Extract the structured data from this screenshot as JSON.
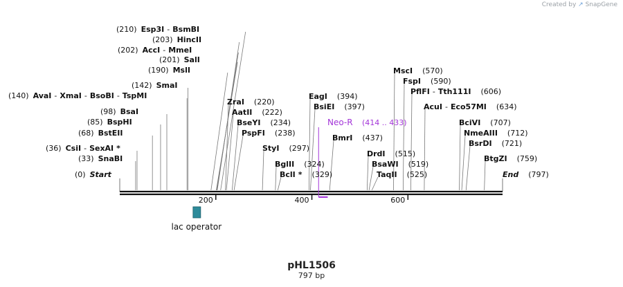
{
  "watermark": {
    "prefix": "Created by",
    "logo_text": "SnapGene"
  },
  "plasmid": {
    "name": "pHL1506",
    "length_label": "797 bp",
    "length": 797
  },
  "axis": {
    "ticks": [
      {
        "pos": 200,
        "label": "200"
      },
      {
        "pos": 400,
        "label": "400"
      },
      {
        "pos": 600,
        "label": "600"
      }
    ]
  },
  "features": [
    {
      "name": "lac operator",
      "start": 154,
      "end": 170,
      "color": "#2e8b9a",
      "kind": "box"
    },
    {
      "name": "Neo-R",
      "range_label": "(414 .. 433)",
      "start": 414,
      "end": 433,
      "color": "#a335d8",
      "kind": "primer"
    }
  ],
  "enzymes": [
    {
      "names": [
        "Start"
      ],
      "pos_label": "(0)",
      "pos": 0,
      "italic": true,
      "star": false
    },
    {
      "names": [
        "SnaBI"
      ],
      "pos_label": "(33)",
      "pos": 33
    },
    {
      "names": [
        "CsiI",
        "SexAI"
      ],
      "pos_label": "(36)",
      "pos": 36,
      "star": true
    },
    {
      "names": [
        "BstEII"
      ],
      "pos_label": "(68)",
      "pos": 68
    },
    {
      "names": [
        "BspHI"
      ],
      "pos_label": "(85)",
      "pos": 85
    },
    {
      "names": [
        "BsaI"
      ],
      "pos_label": "(98)",
      "pos": 98
    },
    {
      "names": [
        "AvaI",
        "XmaI",
        "BsoBI",
        "TspMI"
      ],
      "pos_label": "(140)",
      "pos": 140
    },
    {
      "names": [
        "SmaI"
      ],
      "pos_label": "(142)",
      "pos": 142
    },
    {
      "names": [
        "MslI"
      ],
      "pos_label": "(190)",
      "pos": 190
    },
    {
      "names": [
        "SalI"
      ],
      "pos_label": "(201)",
      "pos": 201
    },
    {
      "names": [
        "AccI",
        "MmeI"
      ],
      "pos_label": "(202)",
      "pos": 202
    },
    {
      "names": [
        "HincII"
      ],
      "pos_label": "(203)",
      "pos": 203
    },
    {
      "names": [
        "Esp3I",
        "BsmBI"
      ],
      "pos_label": "(210)",
      "pos": 210
    },
    {
      "names": [
        "ZraI"
      ],
      "pos_label": "(220)",
      "pos": 220
    },
    {
      "names": [
        "AatII"
      ],
      "pos_label": "(222)",
      "pos": 222
    },
    {
      "names": [
        "BseYI"
      ],
      "pos_label": "(234)",
      "pos": 234
    },
    {
      "names": [
        "PspFI"
      ],
      "pos_label": "(238)",
      "pos": 238
    },
    {
      "names": [
        "StyI"
      ],
      "pos_label": "(297)",
      "pos": 297
    },
    {
      "names": [
        "BglII"
      ],
      "pos_label": "(324)",
      "pos": 324
    },
    {
      "names": [
        "BclI"
      ],
      "pos_label": "(329)",
      "pos": 329,
      "star": true
    },
    {
      "names": [
        "EagI"
      ],
      "pos_label": "(394)",
      "pos": 394
    },
    {
      "names": [
        "BsiEI"
      ],
      "pos_label": "(397)",
      "pos": 397
    },
    {
      "names": [
        "BmrI"
      ],
      "pos_label": "(437)",
      "pos": 437
    },
    {
      "names": [
        "DrdI"
      ],
      "pos_label": "(515)",
      "pos": 515
    },
    {
      "names": [
        "BsaWI"
      ],
      "pos_label": "(519)",
      "pos": 519
    },
    {
      "names": [
        "TaqII"
      ],
      "pos_label": "(525)",
      "pos": 525
    },
    {
      "names": [
        "MscI"
      ],
      "pos_label": "(570)",
      "pos": 570
    },
    {
      "names": [
        "FspI"
      ],
      "pos_label": "(590)",
      "pos": 590
    },
    {
      "names": [
        "PflFI",
        "Tth111I"
      ],
      "pos_label": "(606)",
      "pos": 606
    },
    {
      "names": [
        "AcuI",
        "Eco57MI"
      ],
      "pos_label": "(634)",
      "pos": 634
    },
    {
      "names": [
        "BciVI"
      ],
      "pos_label": "(707)",
      "pos": 707
    },
    {
      "names": [
        "NmeAIII"
      ],
      "pos_label": "(712)",
      "pos": 712
    },
    {
      "names": [
        "BsrDI"
      ],
      "pos_label": "(721)",
      "pos": 721
    },
    {
      "names": [
        "BtgZI"
      ],
      "pos_label": "(759)",
      "pos": 759
    },
    {
      "names": [
        "End"
      ],
      "pos_label": "(797)",
      "pos": 797,
      "italic": true
    }
  ]
}
